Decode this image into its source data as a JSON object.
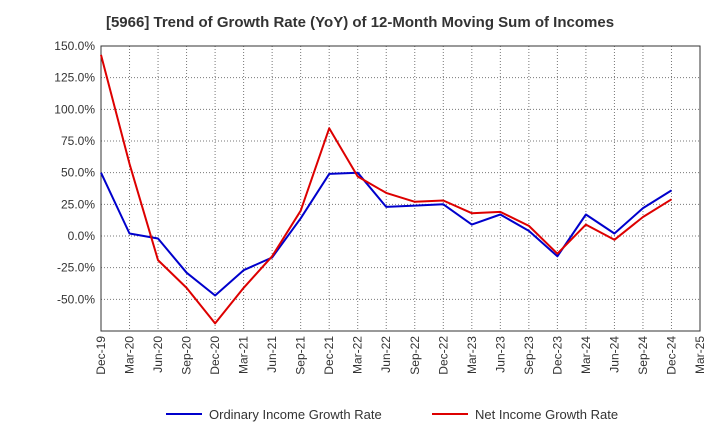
{
  "chart_data": {
    "type": "line",
    "title": "[5966]  Trend of Growth Rate (YoY) of 12-Month Moving Sum of Incomes",
    "xlabel": "",
    "ylabel": "",
    "ylim": [
      -75,
      150
    ],
    "grid": true,
    "legend_position": "bottom",
    "y_ticks": [
      "150.0%",
      "125.0%",
      "100.0%",
      "75.0%",
      "50.0%",
      "25.0%",
      "0.0%",
      "-25.0%",
      "-50.0%"
    ],
    "y_tick_values": [
      150,
      125,
      100,
      75,
      50,
      25,
      0,
      -25,
      -50
    ],
    "x_ticks": [
      "Dec-19",
      "Mar-20",
      "Jun-20",
      "Sep-20",
      "Dec-20",
      "Mar-21",
      "Jun-21",
      "Sep-21",
      "Dec-21",
      "Mar-22",
      "Jun-22",
      "Sep-22",
      "Dec-22",
      "Mar-23",
      "Jun-23",
      "Sep-23",
      "Dec-23",
      "Mar-24",
      "Jun-24",
      "Sep-24",
      "Dec-24",
      "Mar-25"
    ],
    "x": [
      "Dec-19",
      "Mar-20",
      "Jun-20",
      "Sep-20",
      "Dec-20",
      "Mar-21",
      "Jun-21",
      "Sep-21",
      "Dec-21",
      "Mar-22",
      "Jun-22",
      "Sep-22",
      "Dec-22",
      "Mar-23",
      "Jun-23",
      "Sep-23",
      "Dec-23",
      "Mar-24",
      "Jun-24",
      "Sep-24",
      "Dec-24"
    ],
    "series": [
      {
        "name": "Ordinary Income Growth Rate",
        "color": "#0000cc",
        "values": [
          50,
          2,
          -2,
          -29,
          -47,
          -27,
          -17,
          14,
          49,
          50,
          23,
          24,
          25,
          9,
          17,
          4,
          -16,
          17,
          2,
          22,
          36
        ]
      },
      {
        "name": "Net Income Growth Rate",
        "color": "#dd0000",
        "values": [
          143,
          57,
          -19,
          -41,
          -69,
          -41,
          -16,
          20,
          85,
          47,
          34,
          27,
          28,
          18,
          19,
          8,
          -14,
          9,
          -3,
          15,
          29
        ]
      }
    ]
  }
}
